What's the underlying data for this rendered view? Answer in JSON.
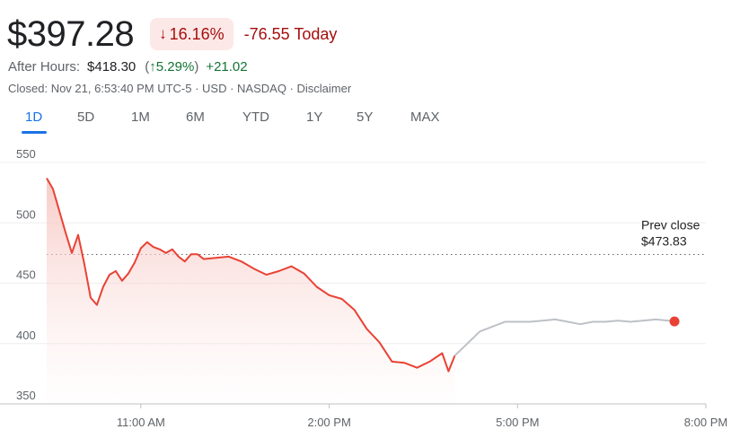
{
  "quote": {
    "price": "$397.28",
    "change_pct": "16.16%",
    "change_abs": "-76.55 Today",
    "direction_icon": "arrow-down-icon"
  },
  "after_hours": {
    "label": "After Hours:",
    "price": "$418.30",
    "pct_open": "(",
    "pct_arrow": "↑",
    "pct": "5.29%",
    "pct_close": ")",
    "change": "+21.02"
  },
  "closed_line": "Closed: Nov 21, 6:53:40 PM UTC-5 · USD · NASDAQ · Disclaimer",
  "tabs": [
    {
      "label": "1D",
      "active": true
    },
    {
      "label": "5D"
    },
    {
      "label": "1M"
    },
    {
      "label": "6M"
    },
    {
      "label": "YTD"
    },
    {
      "label": "1Y"
    },
    {
      "label": "5Y"
    },
    {
      "label": "MAX"
    }
  ],
  "colors": {
    "regular": "#e94235",
    "after_hours": "#bdc1c6",
    "fill": "#fce8e6",
    "prev_close_line": "#5f6368",
    "grid": "#eeeeee"
  },
  "chart_data": {
    "type": "line",
    "x_unit": "hours (24h clock)",
    "xlim": [
      9.5,
      20
    ],
    "ylim": [
      350,
      550
    ],
    "y_ticks": [
      350,
      400,
      450,
      500,
      550
    ],
    "x_ticks": [
      {
        "x": 11,
        "label": "11:00 AM"
      },
      {
        "x": 14,
        "label": "2:00 PM"
      },
      {
        "x": 17,
        "label": "5:00 PM"
      },
      {
        "x": 20,
        "label": "8:00 PM"
      }
    ],
    "prev_close": {
      "value": 473.83,
      "label_line1": "Prev close",
      "label_line2": "$473.83"
    },
    "grid": true,
    "series": [
      {
        "x": [
          9.5,
          9.6,
          9.7,
          9.8,
          9.9,
          10.0,
          10.1,
          10.2,
          10.3,
          10.4,
          10.5,
          10.6,
          10.7,
          10.8,
          10.9,
          11.0,
          11.1,
          11.2,
          11.3,
          11.4,
          11.5,
          11.6,
          11.7,
          11.8,
          11.9,
          12.0,
          12.2,
          12.4,
          12.6,
          12.8,
          13.0,
          13.2,
          13.4,
          13.6,
          13.8,
          14.0,
          14.2,
          14.4,
          14.6,
          14.8,
          15.0,
          15.2,
          15.4,
          15.6,
          15.8,
          15.9,
          16.0
        ],
        "y": [
          537,
          528,
          510,
          492,
          475,
          490,
          466,
          438,
          432,
          447,
          457,
          460,
          452,
          458,
          467,
          479,
          484,
          480,
          478,
          475,
          478,
          472,
          468,
          474,
          474,
          470,
          471,
          472,
          468,
          462,
          457,
          460,
          464,
          458,
          447,
          440,
          437,
          428,
          412,
          401,
          385,
          384,
          380,
          385,
          392,
          377,
          390
        ]
      },
      {
        "x": [
          16.0,
          16.2,
          16.4,
          16.6,
          16.8,
          17.0,
          17.2,
          17.4,
          17.6,
          17.8,
          18.0,
          18.2,
          18.4,
          18.6,
          18.8,
          19.0,
          19.2,
          19.4,
          19.5
        ],
        "y": [
          390,
          400,
          410,
          414,
          418,
          418,
          418,
          419,
          420,
          418,
          416,
          418,
          418,
          419,
          418,
          419,
          420,
          419,
          418.3
        ]
      }
    ],
    "last_point": {
      "x": 19.5,
      "y": 418.3
    }
  }
}
